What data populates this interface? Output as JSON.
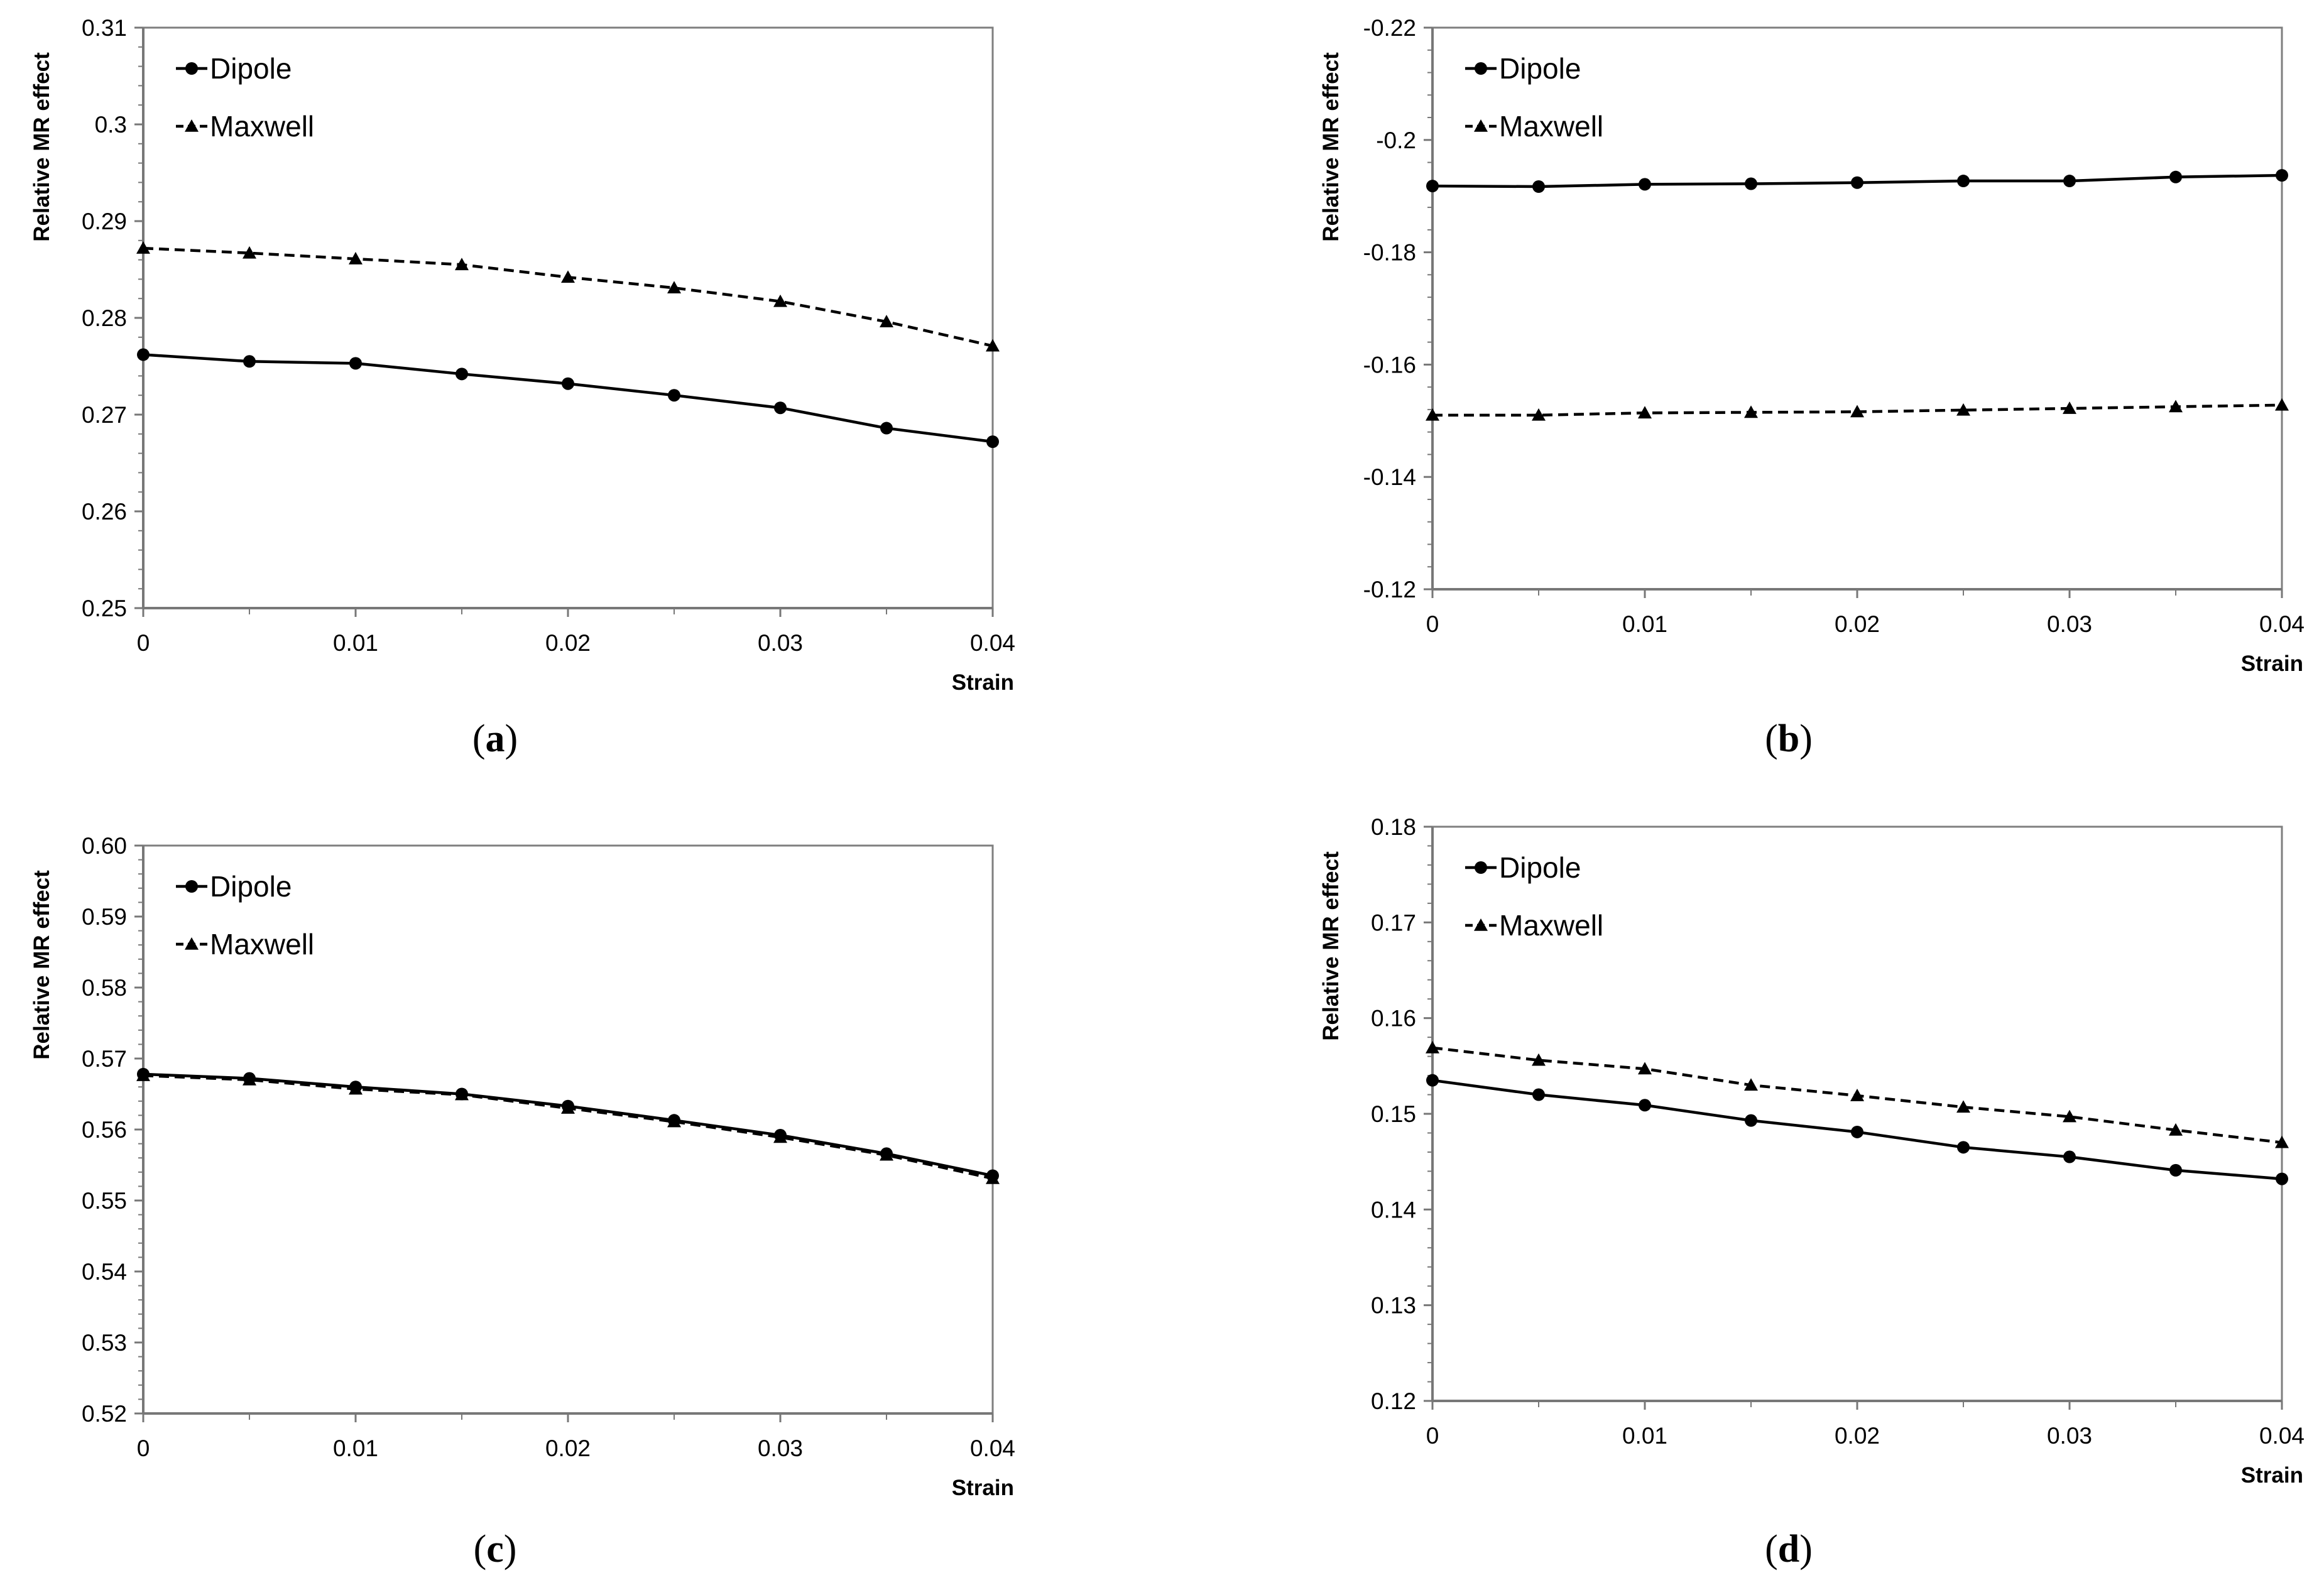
{
  "figure": {
    "panels": [
      "a",
      "b",
      "c",
      "d"
    ]
  },
  "chart_data": [
    {
      "id": "a",
      "type": "line",
      "panel_label": "(a)",
      "panel_letter": "a",
      "xlabel": "Strain",
      "ylabel": "Relative MR effect",
      "xlim": [
        0,
        0.04
      ],
      "ylim": [
        0.25,
        0.31
      ],
      "xticks": [
        0,
        0.01,
        0.02,
        0.03,
        0.04
      ],
      "xtick_labels": [
        "0",
        "0.01",
        "0.02",
        "0.03",
        "0.04"
      ],
      "yticks": [
        0.25,
        0.26,
        0.27,
        0.28,
        0.29,
        0.3,
        0.31
      ],
      "ytick_labels": [
        "0.25",
        "0.26",
        "0.27",
        "0.28",
        "0.29",
        "0.3",
        "0.31"
      ],
      "legend_position": "top-left",
      "x": [
        0,
        0.005,
        0.01,
        0.015,
        0.02,
        0.025,
        0.03,
        0.035,
        0.04
      ],
      "series": [
        {
          "name": "Dipole",
          "style": "solid",
          "marker": "circle",
          "values": [
            0.2762,
            0.2755,
            0.2753,
            0.2742,
            0.2732,
            0.272,
            0.2707,
            0.2686,
            0.2672
          ]
        },
        {
          "name": "Maxwell",
          "style": "dashed",
          "marker": "triangle",
          "values": [
            0.2872,
            0.2867,
            0.2861,
            0.2855,
            0.2842,
            0.2831,
            0.2817,
            0.2796,
            0.2771
          ]
        }
      ]
    },
    {
      "id": "b",
      "type": "line",
      "panel_label": "(b)",
      "panel_letter": "b",
      "xlabel": "Strain",
      "ylabel": "Relative MR effect",
      "xlim": [
        0,
        0.04
      ],
      "ylim": [
        -0.12,
        -0.22
      ],
      "xticks": [
        0,
        0.01,
        0.02,
        0.03,
        0.04
      ],
      "xtick_labels": [
        "0",
        "0.01",
        "0.02",
        "0.03",
        "0.04"
      ],
      "yticks": [
        -0.12,
        -0.14,
        -0.16,
        -0.18,
        -0.2,
        -0.22
      ],
      "ytick_labels": [
        "-0.12",
        "-0.14",
        "-0.16",
        "-0.18",
        "-0.2",
        "-0.22"
      ],
      "legend_position": "top-left",
      "x": [
        0,
        0.005,
        0.01,
        0.015,
        0.02,
        0.025,
        0.03,
        0.035,
        0.04
      ],
      "series": [
        {
          "name": "Dipole",
          "style": "solid",
          "marker": "circle",
          "values": [
            -0.1918,
            -0.1917,
            -0.1921,
            -0.1922,
            -0.1924,
            -0.1927,
            -0.1927,
            -0.1934,
            -0.1937
          ]
        },
        {
          "name": "Maxwell",
          "style": "dashed",
          "marker": "triangle",
          "values": [
            -0.151,
            -0.151,
            -0.1514,
            -0.1515,
            -0.1516,
            -0.1519,
            -0.1522,
            -0.1525,
            -0.1528
          ]
        }
      ]
    },
    {
      "id": "c",
      "type": "line",
      "panel_label": "(c)",
      "panel_letter": "c",
      "xlabel": "Strain",
      "ylabel": "Relative MR effect",
      "xlim": [
        0,
        0.04
      ],
      "ylim": [
        0.52,
        0.6
      ],
      "xticks": [
        0,
        0.01,
        0.02,
        0.03,
        0.04
      ],
      "xtick_labels": [
        "0",
        "0.01",
        "0.02",
        "0.03",
        "0.04"
      ],
      "yticks": [
        0.52,
        0.53,
        0.54,
        0.55,
        0.56,
        0.57,
        0.58,
        0.59,
        0.6
      ],
      "ytick_labels": [
        "0.52",
        "0.53",
        "0.54",
        "0.55",
        "0.56",
        "0.57",
        "0.58",
        "0.59",
        "0.60"
      ],
      "legend_position": "top-left",
      "x": [
        0,
        0.005,
        0.01,
        0.015,
        0.02,
        0.025,
        0.03,
        0.035,
        0.04
      ],
      "series": [
        {
          "name": "Dipole",
          "style": "solid",
          "marker": "circle",
          "values": [
            0.5678,
            0.5672,
            0.566,
            0.565,
            0.5633,
            0.5613,
            0.5592,
            0.5566,
            0.5535
          ]
        },
        {
          "name": "Maxwell",
          "style": "dashed",
          "marker": "triangle",
          "values": [
            0.5676,
            0.567,
            0.5657,
            0.5649,
            0.563,
            0.5611,
            0.5589,
            0.5564,
            0.5531
          ]
        }
      ]
    },
    {
      "id": "d",
      "type": "line",
      "panel_label": "(d)",
      "panel_letter": "d",
      "xlabel": "Strain",
      "ylabel": "Relative MR effect",
      "xlim": [
        0,
        0.04
      ],
      "ylim": [
        0.12,
        0.18
      ],
      "xticks": [
        0,
        0.01,
        0.02,
        0.03,
        0.04
      ],
      "xtick_labels": [
        "0",
        "0.01",
        "0.02",
        "0.03",
        "0.04"
      ],
      "yticks": [
        0.12,
        0.13,
        0.14,
        0.15,
        0.16,
        0.17,
        0.18
      ],
      "ytick_labels": [
        "0.12",
        "0.13",
        "0.14",
        "0.15",
        "0.16",
        "0.17",
        "0.18"
      ],
      "legend_position": "top-left",
      "x": [
        0,
        0.005,
        0.01,
        0.015,
        0.02,
        0.025,
        0.03,
        0.035,
        0.04
      ],
      "series": [
        {
          "name": "Dipole",
          "style": "solid",
          "marker": "circle",
          "values": [
            0.1535,
            0.152,
            0.1509,
            0.1493,
            0.1481,
            0.1465,
            0.1455,
            0.1441,
            0.1432
          ]
        },
        {
          "name": "Maxwell",
          "style": "dashed",
          "marker": "triangle",
          "values": [
            0.1569,
            0.1556,
            0.1547,
            0.153,
            0.1519,
            0.1507,
            0.1497,
            0.1483,
            0.147
          ]
        }
      ]
    }
  ]
}
